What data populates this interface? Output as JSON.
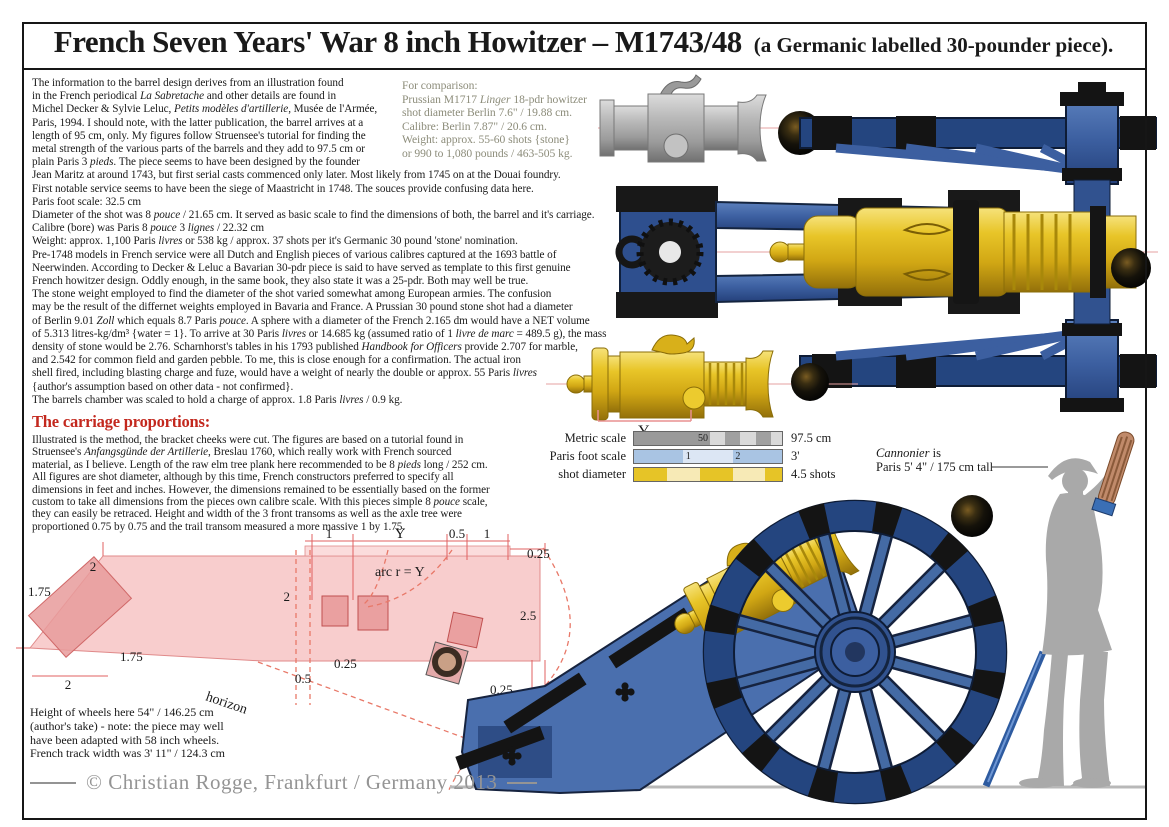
{
  "page": {
    "title_main": "French Seven Years' War 8 inch Howitzer – M1743/48",
    "title_sub": "(a Germanic labelled 30-pounder piece)."
  },
  "intro_lines": [
    "The information to the barrel design derives from an illustration found",
    "in the French periodical _La Sabretache_ and other details are found in",
    "Michel Decker & Sylvie Leluc, _Petits modèles d'artillerie_, Musée de l'Armée,",
    "Paris, 1994. I should note, with the latter publication, the barrel arrives at a",
    "length of 95 cm, only. My figures follow Struensee's tutorial for finding the",
    "metal strength of the various parts of the barrels and they add to 97.5 cm or",
    "plain Paris 3 _pieds_. The piece seems to have been designed by the founder",
    "Jean Maritz at around 1743, but first serial casts commenced only later. Most likely from 1745 on at the Douai foundry.",
    "First notable service seems to have been the siege of Maastricht in 1748. The souces provide confusing data here.",
    "Paris foot scale: 32.5 cm",
    "Diameter of the shot was 8 _pouce_ / 21.65 cm. It served as basic scale to find the dimensions of both, the barrel and it's carriage.",
    "Calibre (bore) was Paris 8 _pouce_ 3 _lignes_ / 22.32 cm",
    "Weight: approx. 1,100 Paris _livres_ or 538 kg / approx. 37 shots per it's Germanic 30 pound 'stone' nomination.",
    "Pre-1748 models in French service were all Dutch and English pieces of various calibres captured at the 1693 battle of",
    "Neerwinden. According to Decker & Leluc a Bavarian 30-pdr piece is said to have served as template to this first genuine",
    "French howitzer design. Oddly enough, in the same book, they also state it was a 25-pdr. Both may well be true.",
    "The stone weight employed to find the diameter of the shot varied somewhat among European armies. The confusion",
    "may be the result of the differnet weights employed in Bavaria and France. A Prussian 30 pound stone shot had a diameter",
    "of Berlin 9.01 _Zoll_ which equals 8.7 Paris _pouce_. A sphere with a diameter of the French 2.165 dm would have a NET volume",
    "of 5.313 litres-kg/dm³ {water = 1}. To arrive at 30 Paris _livres_ or 14.685 kg (assumed ratio of 1 _livre de marc_ = 489.5 g), the mass",
    "density of stone would be 2.76. Scharnhorst's tables in his 1793 published _Handbook for Officers_ provide 2.707 for marble,",
    "and 2.542 for common field and garden pebble. To me, this is close enough for a confirmation. The actual iron",
    "shell fired, including blasting charge and fuze, would have a weight of nearly the double or approx. 55 Paris _livres_",
    "{author's assumption based on other data - not confirmed}.",
    "The barrels chamber was scaled to hold a charge of approx. 1.8 Paris _livres_ / 0.9 kg."
  ],
  "comparison_lines": [
    "For comparison:",
    "Prussian M1717 _Linger_ 18-pdr howitzer",
    "shot diameter Berlin 7.6\" / 19.88 cm.",
    "Calibre: Berlin 7.87\" / 20.6 cm.",
    "Weight: approx. 55-60 shots {stone}",
    "or 990 to 1,080 pounds / 463-505 kg."
  ],
  "carriage_section": {
    "heading": "The carriage proportions:",
    "lines": [
      "Illustrated is the method, the bracket cheeks were cut. The figures are based on a tutorial found in",
      "Struensee's _Anfangsgünde der Artillerie_, Breslau 1760, which really work with French sourced",
      "material, as I believe. Length of the raw elm tree plank here recommended to be 8 _pieds_ long / 252 cm.",
      "All figures are shot diameter, although by this time, French constructors preferred to specify all",
      "dimensions in feet and inches. However, the dimensions remained to be essentially based on the former",
      "custom to take all dimensions from the pieces own calibre scale. With this pieces simple 8 _pouce_ scale,",
      "they can easily be retraced. Height and width of the 3 front transoms as well as the axle tree were",
      "proportioned 0.75 by 0.75 and the trail transom measured a more massive 1 by 1.75."
    ]
  },
  "scale_rows": {
    "metric": {
      "label": "Metric scale",
      "inner": "50",
      "value": "97.5 cm"
    },
    "paris": {
      "label": "Paris foot scale",
      "mark1": "1",
      "mark2": "2",
      "value": "3'"
    },
    "shot": {
      "label": "shot diameter",
      "value": "4.5 shots"
    }
  },
  "cannonier_note": {
    "line1": "_Cannonier_ is",
    "line2": "Paris 5' 4\" / 175 cm tall"
  },
  "wheel_note_lines": [
    "Height of wheels here 54\" / 146.25 cm",
    "(author's take) - note: the piece may well",
    "have been adapted with 58 inch wheels.",
    "French track width was 3' 11\" / 124.3 cm"
  ],
  "diagram_labels": {
    "top_1": "1",
    "top_y": "Y",
    "top_05": "0.5",
    "top_1b": "1",
    "top_025": "0.25",
    "left_175": "1.75",
    "left_2": "2",
    "trail_175": "1.75",
    "bottom_2": "2",
    "mid_2": "2",
    "arc_label": "arc r = Y",
    "mid_025": "0.25",
    "mid_05": "0.5",
    "right_25": "2.5",
    "right_025": "0.25",
    "horizon": "horizon",
    "barrel_y": "Y"
  },
  "copyright": "© Christian Rogge, Frankfurt / Germany 2013",
  "palette": {
    "accent_red": "#c3281e",
    "comparison_grey": "#8c8c7a",
    "copyright_grey": "#949494",
    "carriage_blue": "#3c5fa0",
    "barrel_yellow": "#e2ba1d",
    "barrel_grey": "#b4b4b4",
    "silhouette_grey": "#a9a9a9",
    "diagram_pink": "#f5baba",
    "dash_red": "#e87868"
  }
}
